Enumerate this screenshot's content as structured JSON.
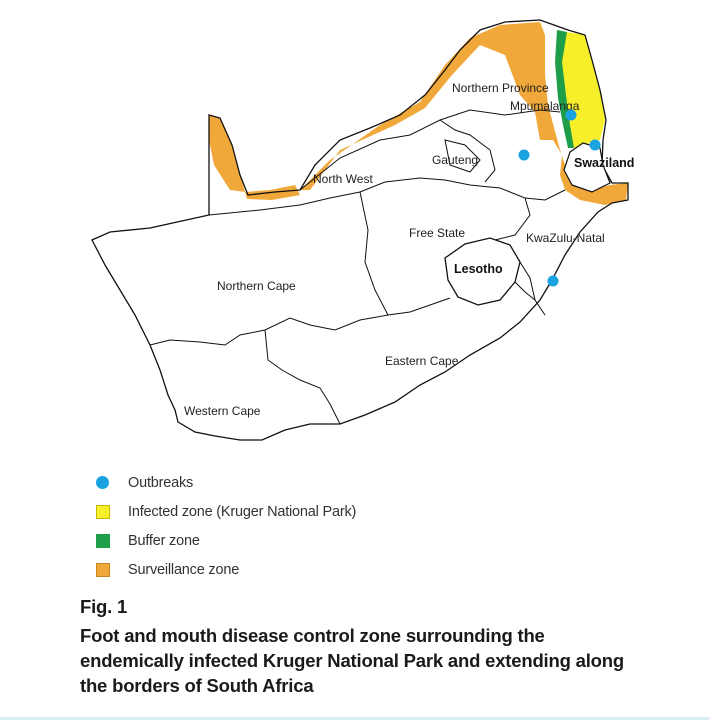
{
  "map": {
    "regions": [
      {
        "name": "Northern Province",
        "bold": false
      },
      {
        "name": "Mpumalanga",
        "bold": false
      },
      {
        "name": "Gauteng",
        "bold": false
      },
      {
        "name": "Swaziland",
        "bold": true
      },
      {
        "name": "North West",
        "bold": false
      },
      {
        "name": "Free State",
        "bold": false
      },
      {
        "name": "KwaZulu-Natal",
        "bold": false
      },
      {
        "name": "Lesotho",
        "bold": true
      },
      {
        "name": "Northern Cape",
        "bold": false
      },
      {
        "name": "Eastern Cape",
        "bold": false
      },
      {
        "name": "Western Cape",
        "bold": false
      }
    ],
    "colors": {
      "outbreak": "#1aa3e0",
      "infected": "#f7ef2a",
      "buffer": "#1f9e4a",
      "surveillance": "#f0a83a"
    }
  },
  "legend": [
    {
      "label": "Outbreaks",
      "symbol": "circle",
      "color": "#1aa3e0"
    },
    {
      "label": "Infected zone (Kruger National Park)",
      "symbol": "square",
      "color": "#f7ef2a"
    },
    {
      "label": "Buffer zone",
      "symbol": "square",
      "color": "#1f9e4a"
    },
    {
      "label": "Surveillance zone",
      "symbol": "square",
      "color": "#f0a83a"
    }
  ],
  "caption": {
    "fig": "Fig. 1",
    "lines": [
      "Foot and mouth disease control zone surrounding the",
      "endemically infected Kruger National Park and extending along",
      "the borders of South Africa"
    ]
  }
}
